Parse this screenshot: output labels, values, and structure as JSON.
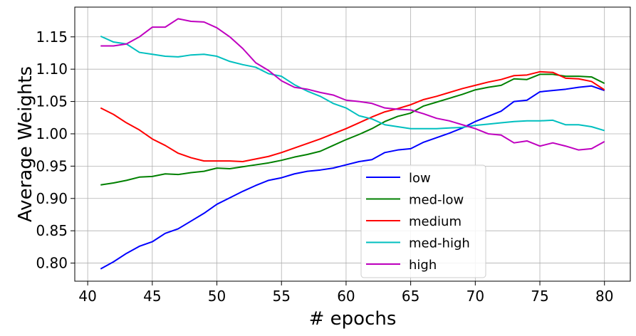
{
  "chart_data": {
    "type": "line",
    "title": "",
    "xlabel": "# epochs",
    "ylabel": "Average Weights",
    "xlim": [
      39,
      82
    ],
    "ylim": [
      0.772,
      1.196
    ],
    "xticks": [
      40,
      45,
      50,
      55,
      60,
      65,
      70,
      75,
      80
    ],
    "yticks": [
      0.8,
      0.85,
      0.9,
      0.95,
      1.0,
      1.05,
      1.1,
      1.15
    ],
    "xtick_labels": [
      "40",
      "45",
      "50",
      "55",
      "60",
      "65",
      "70",
      "75",
      "80"
    ],
    "ytick_labels": [
      "0.80",
      "0.85",
      "0.90",
      "0.95",
      "1.00",
      "1.05",
      "1.10",
      "1.15"
    ],
    "grid": true,
    "legend_position": "lower-center",
    "x": [
      41,
      42,
      43,
      44,
      45,
      46,
      47,
      48,
      49,
      50,
      51,
      52,
      53,
      54,
      55,
      56,
      57,
      58,
      59,
      60,
      61,
      62,
      63,
      64,
      65,
      66,
      67,
      68,
      69,
      70,
      71,
      72,
      73,
      74,
      75,
      76,
      77,
      78,
      79,
      80
    ],
    "series": [
      {
        "name": "low",
        "color": "#0000ff",
        "values": [
          0.791,
          0.802,
          0.815,
          0.826,
          0.833,
          0.846,
          0.853,
          0.865,
          0.877,
          0.891,
          0.901,
          0.911,
          0.92,
          0.928,
          0.932,
          0.938,
          0.942,
          0.944,
          0.947,
          0.952,
          0.957,
          0.96,
          0.971,
          0.975,
          0.977,
          0.987,
          0.994,
          1.001,
          1.009,
          1.019,
          1.027,
          1.035,
          1.05,
          1.052,
          1.065,
          1.067,
          1.069,
          1.072,
          1.074,
          1.067
        ]
      },
      {
        "name": "med-low",
        "color": "#008000",
        "values": [
          0.921,
          0.924,
          0.928,
          0.933,
          0.934,
          0.938,
          0.937,
          0.94,
          0.942,
          0.947,
          0.946,
          0.949,
          0.952,
          0.955,
          0.959,
          0.964,
          0.968,
          0.973,
          0.982,
          0.991,
          0.999,
          1.008,
          1.019,
          1.027,
          1.032,
          1.043,
          1.049,
          1.055,
          1.061,
          1.068,
          1.072,
          1.075,
          1.085,
          1.084,
          1.092,
          1.092,
          1.089,
          1.089,
          1.088,
          1.078
        ]
      },
      {
        "name": "medium",
        "color": "#ff0000",
        "values": [
          1.04,
          1.03,
          1.017,
          1.006,
          0.992,
          0.982,
          0.97,
          0.963,
          0.958,
          0.958,
          0.958,
          0.957,
          0.961,
          0.965,
          0.971,
          0.978,
          0.985,
          0.992,
          1.0,
          1.008,
          1.017,
          1.026,
          1.034,
          1.039,
          1.045,
          1.053,
          1.058,
          1.064,
          1.07,
          1.075,
          1.08,
          1.084,
          1.09,
          1.091,
          1.096,
          1.095,
          1.086,
          1.085,
          1.081,
          1.068
        ]
      },
      {
        "name": "med-high",
        "color": "#00bfbf",
        "values": [
          1.151,
          1.142,
          1.139,
          1.126,
          1.123,
          1.12,
          1.119,
          1.122,
          1.123,
          1.12,
          1.112,
          1.107,
          1.103,
          1.093,
          1.089,
          1.076,
          1.066,
          1.058,
          1.047,
          1.04,
          1.028,
          1.023,
          1.014,
          1.011,
          1.008,
          1.008,
          1.008,
          1.009,
          1.01,
          1.013,
          1.015,
          1.017,
          1.019,
          1.02,
          1.02,
          1.021,
          1.014,
          1.014,
          1.011,
          1.005
        ]
      },
      {
        "name": "high",
        "color": "#bf00bf",
        "values": [
          1.136,
          1.136,
          1.139,
          1.15,
          1.165,
          1.165,
          1.178,
          1.174,
          1.173,
          1.164,
          1.15,
          1.132,
          1.11,
          1.098,
          1.082,
          1.072,
          1.069,
          1.064,
          1.06,
          1.052,
          1.05,
          1.047,
          1.04,
          1.038,
          1.037,
          1.031,
          1.024,
          1.02,
          1.014,
          1.008,
          1.0,
          0.998,
          0.986,
          0.989,
          0.981,
          0.986,
          0.981,
          0.975,
          0.977,
          0.988
        ]
      }
    ]
  }
}
